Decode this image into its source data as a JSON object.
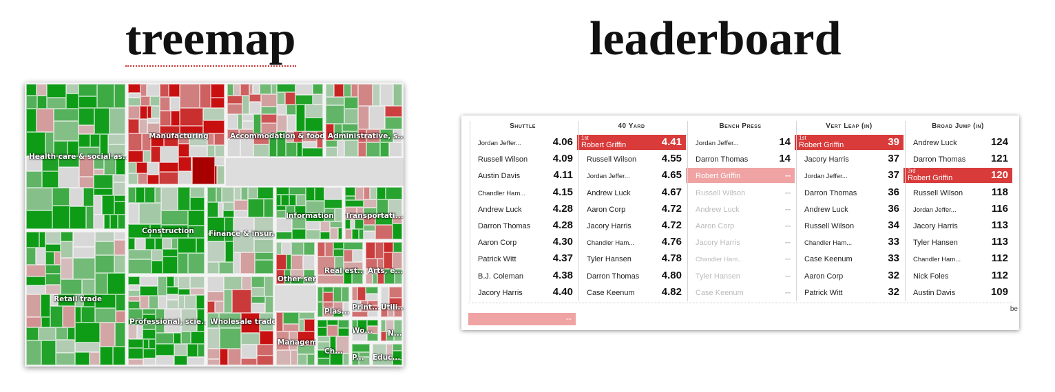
{
  "titles": {
    "treemap": "treemap",
    "leaderboard": "leaderboard"
  },
  "colors": {
    "green": "#0e9c17",
    "red": "#c81010",
    "highlight": "#d93a3a",
    "pink": "#f0a3a3"
  },
  "treemap": {
    "sectors": [
      "Health care & social as...",
      "Manufacturing",
      "Accommodation & food...",
      "Administrative, s...",
      "Construction",
      "Finance & insur...",
      "Information",
      "Transportati...",
      "Retail trade",
      "Other ser...",
      "Real est...",
      "Arts, e...",
      "Professional, scie...",
      "Wholesale trade",
      "Plas...",
      "Print...",
      "Utili...",
      "Managem...",
      "Wo...",
      "N...",
      "Ch...",
      "P...",
      "Educ..."
    ]
  },
  "leaderboard": {
    "footer_cut": "be",
    "selection_value": "--",
    "columns": [
      {
        "header": "Shuttle",
        "rows": [
          {
            "name": "Jordan Jeffer...",
            "value": "4.06"
          },
          {
            "name": "Russell Wilson",
            "value": "4.09"
          },
          {
            "name": "Austin Davis",
            "value": "4.11"
          },
          {
            "name": "Chandler Ham...",
            "value": "4.15"
          },
          {
            "name": "Andrew Luck",
            "value": "4.28"
          },
          {
            "name": "Darron Thomas",
            "value": "4.28"
          },
          {
            "name": "Aaron Corp",
            "value": "4.30"
          },
          {
            "name": "Patrick Witt",
            "value": "4.37"
          },
          {
            "name": "B.J. Coleman",
            "value": "4.38"
          },
          {
            "name": "Jacory Harris",
            "value": "4.40"
          }
        ]
      },
      {
        "header": "40 Yard",
        "rows": [
          {
            "rank": "1st",
            "name": "Robert Griffin",
            "value": "4.41"
          },
          {
            "name": "Russell Wilson",
            "value": "4.55"
          },
          {
            "name": "Jordan Jeffer...",
            "value": "4.65"
          },
          {
            "name": "Andrew Luck",
            "value": "4.67"
          },
          {
            "name": "Aaron Corp",
            "value": "4.72"
          },
          {
            "name": "Jacory Harris",
            "value": "4.72"
          },
          {
            "name": "Chandler Ham...",
            "value": "4.76"
          },
          {
            "name": "Tyler Hansen",
            "value": "4.78"
          },
          {
            "name": "Darron Thomas",
            "value": "4.80"
          },
          {
            "name": "Case Keenum",
            "value": "4.82"
          }
        ]
      },
      {
        "header": "Bench Press",
        "rows": [
          {
            "name": "Jordan Jeffer...",
            "value": "14"
          },
          {
            "name": "Darron Thomas",
            "value": "14"
          },
          {
            "name": "Robert Griffin",
            "value": "--"
          },
          {
            "name": "Russell Wilson",
            "value": "--"
          },
          {
            "name": "Andrew Luck",
            "value": "--"
          },
          {
            "name": "Aaron Corp",
            "value": "--"
          },
          {
            "name": "Jacory Harris",
            "value": "--"
          },
          {
            "name": "Chandler Ham...",
            "value": "--"
          },
          {
            "name": "Tyler Hansen",
            "value": "--"
          },
          {
            "name": "Case Keenum",
            "value": "--"
          }
        ]
      },
      {
        "header": "Vert Leap (in)",
        "rows": [
          {
            "rank": "1st",
            "name": "Robert Griffin",
            "value": "39"
          },
          {
            "name": "Jacory Harris",
            "value": "37"
          },
          {
            "name": "Jordan Jeffer...",
            "value": "37"
          },
          {
            "name": "Darron Thomas",
            "value": "36"
          },
          {
            "name": "Andrew Luck",
            "value": "36"
          },
          {
            "name": "Russell Wilson",
            "value": "34"
          },
          {
            "name": "Chandler Ham...",
            "value": "33"
          },
          {
            "name": "Case Keenum",
            "value": "33"
          },
          {
            "name": "Aaron Corp",
            "value": "32"
          },
          {
            "name": "Patrick Witt",
            "value": "32"
          }
        ]
      },
      {
        "header": "Broad Jump (in)",
        "rows": [
          {
            "name": "Andrew Luck",
            "value": "124"
          },
          {
            "name": "Darron Thomas",
            "value": "121"
          },
          {
            "rank": "3rd",
            "name": "Robert Griffin",
            "value": "120"
          },
          {
            "name": "Russell Wilson",
            "value": "118"
          },
          {
            "name": "Jordan Jeffer...",
            "value": "116"
          },
          {
            "name": "Jacory Harris",
            "value": "113"
          },
          {
            "name": "Tyler Hansen",
            "value": "113"
          },
          {
            "name": "Chandler Ham...",
            "value": "112"
          },
          {
            "name": "Nick Foles",
            "value": "112"
          },
          {
            "name": "Austin Davis",
            "value": "109"
          }
        ]
      }
    ]
  }
}
